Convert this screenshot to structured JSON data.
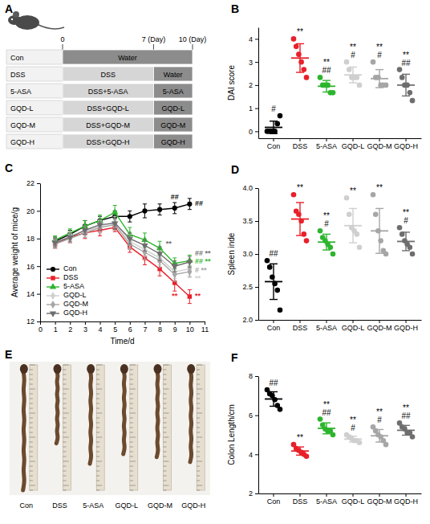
{
  "chart_data": [
    {
      "type": "dot",
      "panel_label": "B",
      "y_label": "DAI score",
      "categories": [
        "Con",
        "DSS",
        "5-ASA",
        "GQD-L",
        "GQD-M",
        "GQD-H"
      ],
      "colors": [
        "#000000",
        "#e8202a",
        "#2db52d",
        "#cfcfcf",
        "#a6a6a6",
        "#6e6e6e"
      ],
      "points": [
        [
          0,
          0,
          0,
          0,
          0.33,
          0.67
        ],
        [
          4.0,
          3.67,
          3.33,
          3.0,
          2.67,
          2.33
        ],
        [
          2.33,
          2.0,
          2.0,
          2.0,
          1.67,
          1.67
        ],
        [
          3.0,
          2.67,
          2.33,
          2.33,
          2.33,
          2.0
        ],
        [
          3.0,
          2.33,
          2.33,
          2.0,
          2.0,
          2.0
        ],
        [
          2.67,
          2.33,
          2.0,
          2.0,
          1.67,
          1.33
        ]
      ],
      "values": [
        0.17,
        3.17,
        1.95,
        2.44,
        2.28,
        2.0
      ],
      "errors": [
        0.27,
        0.62,
        0.25,
        0.34,
        0.39,
        0.47
      ],
      "significance": [
        [
          "#"
        ],
        [
          "**"
        ],
        [
          "**",
          "##"
        ],
        [
          "**",
          "#"
        ],
        [
          "**",
          "#"
        ],
        [
          "**",
          "##"
        ]
      ],
      "ylim": [
        -0.3,
        4.5
      ],
      "yticks": [
        0,
        1,
        2,
        3,
        4
      ]
    },
    {
      "type": "line",
      "panel_label": "C",
      "x_label": "Time/d",
      "y_label": "Average weight of mice/g",
      "x": [
        1,
        2,
        3,
        4,
        5,
        6,
        7,
        8,
        9,
        10
      ],
      "series": [
        {
          "name": "Con",
          "color": "#000000",
          "marker": "circle",
          "values": [
            17.8,
            18.3,
            18.9,
            19.3,
            19.6,
            19.6,
            20.0,
            20.1,
            20.2,
            20.5
          ],
          "errors": [
            0.3,
            0.3,
            0.4,
            0.3,
            0.4,
            0.4,
            0.5,
            0.4,
            0.4,
            0.4
          ]
        },
        {
          "name": "DSS",
          "color": "#e8202a",
          "marker": "square",
          "values": [
            17.6,
            18.1,
            18.4,
            18.6,
            18.8,
            17.4,
            16.6,
            15.8,
            14.8,
            13.8
          ],
          "errors": [
            0.3,
            0.4,
            0.4,
            0.4,
            0.3,
            0.4,
            0.5,
            0.5,
            0.6,
            0.5
          ]
        },
        {
          "name": "5-ASA",
          "color": "#2db52d",
          "marker": "triangle",
          "values": [
            17.9,
            18.4,
            18.9,
            19.3,
            19.9,
            18.3,
            17.9,
            17.3,
            16.2,
            16.4
          ],
          "errors": [
            0.3,
            0.3,
            0.4,
            0.4,
            0.5,
            0.5,
            0.5,
            0.5,
            0.4,
            0.4
          ]
        },
        {
          "name": "GQD-L",
          "color": "#cfcfcf",
          "marker": "diamond",
          "values": [
            17.7,
            18.2,
            18.5,
            18.9,
            19.2,
            17.8,
            17.2,
            16.6,
            15.6,
            15.8
          ],
          "errors": [
            0.3,
            0.3,
            0.4,
            0.4,
            0.4,
            0.5,
            0.5,
            0.5,
            0.5,
            0.5
          ]
        },
        {
          "name": "GQD-M",
          "color": "#a6a6a6",
          "marker": "diamond",
          "values": [
            17.6,
            18.0,
            18.4,
            18.8,
            19.0,
            17.6,
            17.0,
            16.4,
            15.4,
            15.6
          ],
          "errors": [
            0.3,
            0.3,
            0.3,
            0.4,
            0.4,
            0.4,
            0.5,
            0.5,
            0.5,
            0.4
          ]
        },
        {
          "name": "GQD-H",
          "color": "#6e6e6e",
          "marker": "triangle-down",
          "values": [
            17.7,
            18.1,
            18.6,
            19.0,
            19.1,
            18.0,
            17.5,
            16.9,
            16.0,
            16.3
          ],
          "errors": [
            0.3,
            0.3,
            0.3,
            0.4,
            0.4,
            0.4,
            0.4,
            0.5,
            0.4,
            0.4
          ]
        }
      ],
      "annotations": [
        {
          "x": 9,
          "y": 21.0,
          "text": "##",
          "color": "#000000"
        },
        {
          "x": 10.35,
          "y": 20.5,
          "text": "##",
          "color": "#000000"
        },
        {
          "x": 8.6,
          "y": 17.6,
          "text": "**",
          "color": "#6e6e6e"
        },
        {
          "x": 9,
          "y": 13.8,
          "text": "**",
          "color": "#e8202a"
        },
        {
          "x": 10.35,
          "y": 16.9,
          "text": "## **",
          "color": "#6e6e6e"
        },
        {
          "x": 10.35,
          "y": 16.3,
          "text": "## **",
          "color": "#2db52d"
        },
        {
          "x": 10.35,
          "y": 15.7,
          "text": "# **",
          "color": "#a6a6a6"
        },
        {
          "x": 10.35,
          "y": 15.1,
          "text": "**",
          "color": "#cfcfcf"
        },
        {
          "x": 10.35,
          "y": 13.8,
          "text": "**",
          "color": "#e8202a"
        }
      ],
      "legend": "lower left",
      "xlim": [
        0,
        11
      ],
      "xticks": [
        0,
        1,
        2,
        3,
        4,
        5,
        6,
        7,
        8,
        9,
        10,
        11
      ],
      "ylim": [
        12,
        22
      ],
      "yticks": [
        12,
        14,
        16,
        18,
        20,
        22
      ]
    },
    {
      "type": "dot",
      "panel_label": "D",
      "y_label": "Spleen inde",
      "categories": [
        "Con",
        "DSS",
        "5-ASA",
        "GQD-L",
        "GQD-M",
        "GQD-H"
      ],
      "colors": [
        "#000000",
        "#e8202a",
        "#2db52d",
        "#cfcfcf",
        "#a6a6a6",
        "#6e6e6e"
      ],
      "points": [
        [
          2.9,
          2.8,
          2.65,
          2.55,
          2.45,
          2.15
        ],
        [
          3.9,
          3.65,
          3.6,
          3.5,
          3.3,
          3.2
        ],
        [
          3.35,
          3.25,
          3.2,
          3.15,
          3.1,
          3.0
        ],
        [
          3.85,
          3.6,
          3.4,
          3.35,
          3.3,
          3.1
        ],
        [
          3.9,
          3.6,
          3.35,
          3.2,
          3.05,
          3.0
        ],
        [
          3.4,
          3.3,
          3.2,
          3.15,
          3.1,
          3.0
        ]
      ],
      "values": [
        2.58,
        3.53,
        3.18,
        3.43,
        3.35,
        3.19
      ],
      "errors": [
        0.27,
        0.25,
        0.12,
        0.26,
        0.34,
        0.14
      ],
      "significance": [
        [
          "##"
        ],
        [
          "**"
        ],
        [
          "**",
          "#"
        ],
        [
          "**"
        ],
        [
          "**"
        ],
        [
          "**",
          "#"
        ]
      ],
      "ylim": [
        2.0,
        4.0
      ],
      "yticks": [
        {
          "value": 2.0,
          "label": "2.0"
        },
        2.5,
        {
          "value": 3.0,
          "label": "3.0"
        },
        3.5,
        {
          "value": 4.0,
          "label": "4.0"
        }
      ]
    },
    {
      "type": "dot",
      "panel_label": "F",
      "y_label": "Colon Length/cm",
      "categories": [
        "Con",
        "DSS",
        "5-ASA",
        "GQD-L",
        "GQD-M",
        "GQD-H"
      ],
      "colors": [
        "#000000",
        "#e8202a",
        "#2db52d",
        "#cfcfcf",
        "#a6a6a6",
        "#6e6e6e"
      ],
      "points": [
        [
          7.3,
          7.1,
          7.0,
          6.8,
          6.5,
          6.3
        ],
        [
          4.5,
          4.3,
          4.2,
          4.1,
          4.0,
          3.9
        ],
        [
          5.8,
          5.5,
          5.3,
          5.2,
          5.2,
          5.0
        ],
        [
          5.0,
          4.9,
          4.8,
          4.7,
          4.7,
          4.6
        ],
        [
          5.4,
          5.2,
          5.0,
          4.9,
          4.7,
          4.5
        ],
        [
          5.6,
          5.4,
          5.3,
          5.1,
          5.1,
          4.9
        ]
      ],
      "values": [
        6.83,
        4.17,
        5.33,
        4.78,
        4.95,
        5.23
      ],
      "errors": [
        0.37,
        0.21,
        0.28,
        0.15,
        0.32,
        0.25
      ],
      "significance": [
        [
          "##"
        ],
        [
          "**"
        ],
        [
          "**",
          "##"
        ],
        [
          "**",
          "#"
        ],
        [
          "**",
          "#"
        ],
        [
          "**",
          "##"
        ]
      ],
      "ylim": [
        2,
        8
      ],
      "yticks": [
        2,
        4,
        6,
        8
      ]
    }
  ],
  "diagram": {
    "panel_label": "A",
    "timeline": [
      {
        "value": 0,
        "label": "0"
      },
      {
        "value": 7,
        "label": "7 (Day)"
      },
      {
        "value": 10,
        "label": "10 (Day)"
      }
    ],
    "rows": [
      {
        "group": "Con",
        "phases": [
          {
            "text": "Water",
            "from": 0,
            "to": 10
          }
        ]
      },
      {
        "group": "DSS",
        "phases": [
          {
            "text": "DSS",
            "from": 0,
            "to": 7
          },
          {
            "text": "Water",
            "from": 7,
            "to": 10
          }
        ]
      },
      {
        "group": "5-ASA",
        "phases": [
          {
            "text": "DSS+5-ASA",
            "from": 0,
            "to": 7
          },
          {
            "text": "5-ASA",
            "from": 7,
            "to": 10
          }
        ]
      },
      {
        "group": "GQD-L",
        "phases": [
          {
            "text": "DSS+GQD-L",
            "from": 0,
            "to": 7
          },
          {
            "text": "GQD-L",
            "from": 7,
            "to": 10
          }
        ]
      },
      {
        "group": "GQD-M",
        "phases": [
          {
            "text": "DSS+GQD-M",
            "from": 0,
            "to": 7
          },
          {
            "text": "GQD-M",
            "from": 7,
            "to": 10
          }
        ]
      },
      {
        "group": "GQD-H",
        "phases": [
          {
            "text": "DSS+GQD-H",
            "from": 0,
            "to": 7
          },
          {
            "text": "GQD-H",
            "from": 7,
            "to": 10
          }
        ]
      }
    ]
  },
  "photo": {
    "panel_label": "E",
    "labels": [
      "Con",
      "DSS",
      "5-ASA",
      "GQD-L",
      "GQD-M",
      "GQD-H"
    ]
  }
}
